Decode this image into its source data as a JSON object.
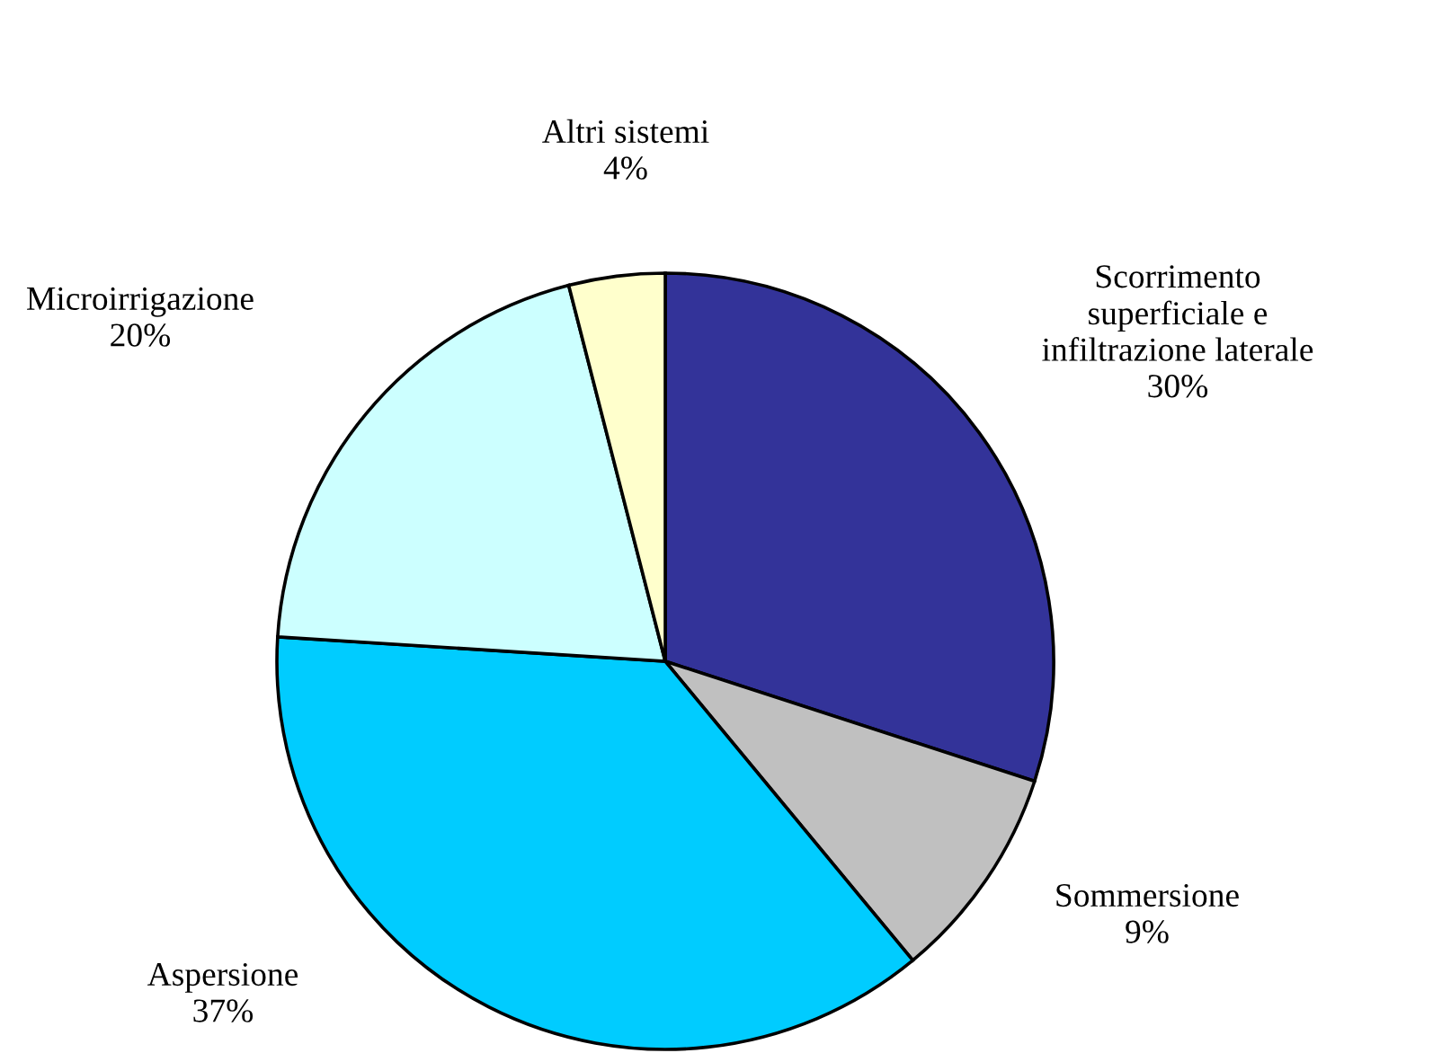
{
  "chart_data": {
    "type": "pie",
    "categories": [
      "Scorrimento superficiale e infiltrazione laterale",
      "Sommersione",
      "Aspersione",
      "Microirrigazione",
      "Altri sistemi"
    ],
    "values": [
      30,
      9,
      37,
      20,
      4
    ],
    "value_labels": [
      "30%",
      "9%",
      "37%",
      "20%",
      "4%"
    ],
    "colors": [
      "#333399",
      "#c0c0c0",
      "#00ccff",
      "#ccffff",
      "#ffffcc"
    ],
    "legend": false
  }
}
